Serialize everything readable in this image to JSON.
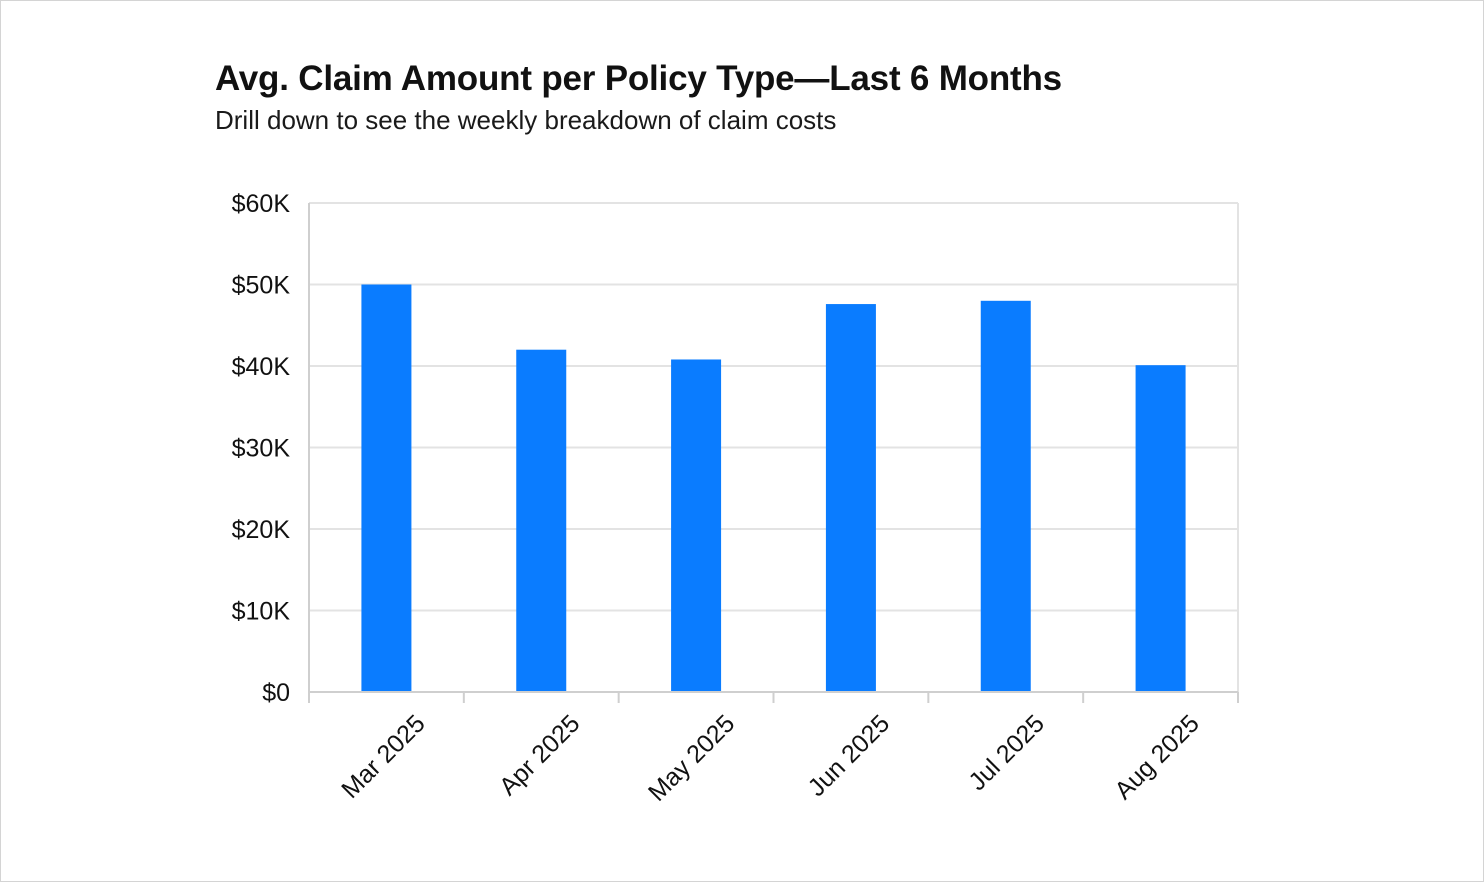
{
  "chart_data": {
    "type": "bar",
    "title": "Avg. Claim Amount per Policy Type—Last 6 Months",
    "subtitle": "Drill down to see the weekly breakdown of claim costs",
    "categories": [
      "Mar 2025",
      "Apr 2025",
      "May 2025",
      "Jun 2025",
      "Jul 2025",
      "Aug 2025"
    ],
    "values": [
      50000,
      42000,
      40800,
      47600,
      48000,
      40100
    ],
    "ylim": [
      0,
      60000
    ],
    "yticks": [
      0,
      10000,
      20000,
      30000,
      40000,
      50000,
      60000
    ],
    "ytick_labels": [
      "$0",
      "$10K",
      "$20K",
      "$30K",
      "$40K",
      "$50K",
      "$60K"
    ],
    "grid": true,
    "legend": "none",
    "bar_color": "#0a7cff"
  }
}
